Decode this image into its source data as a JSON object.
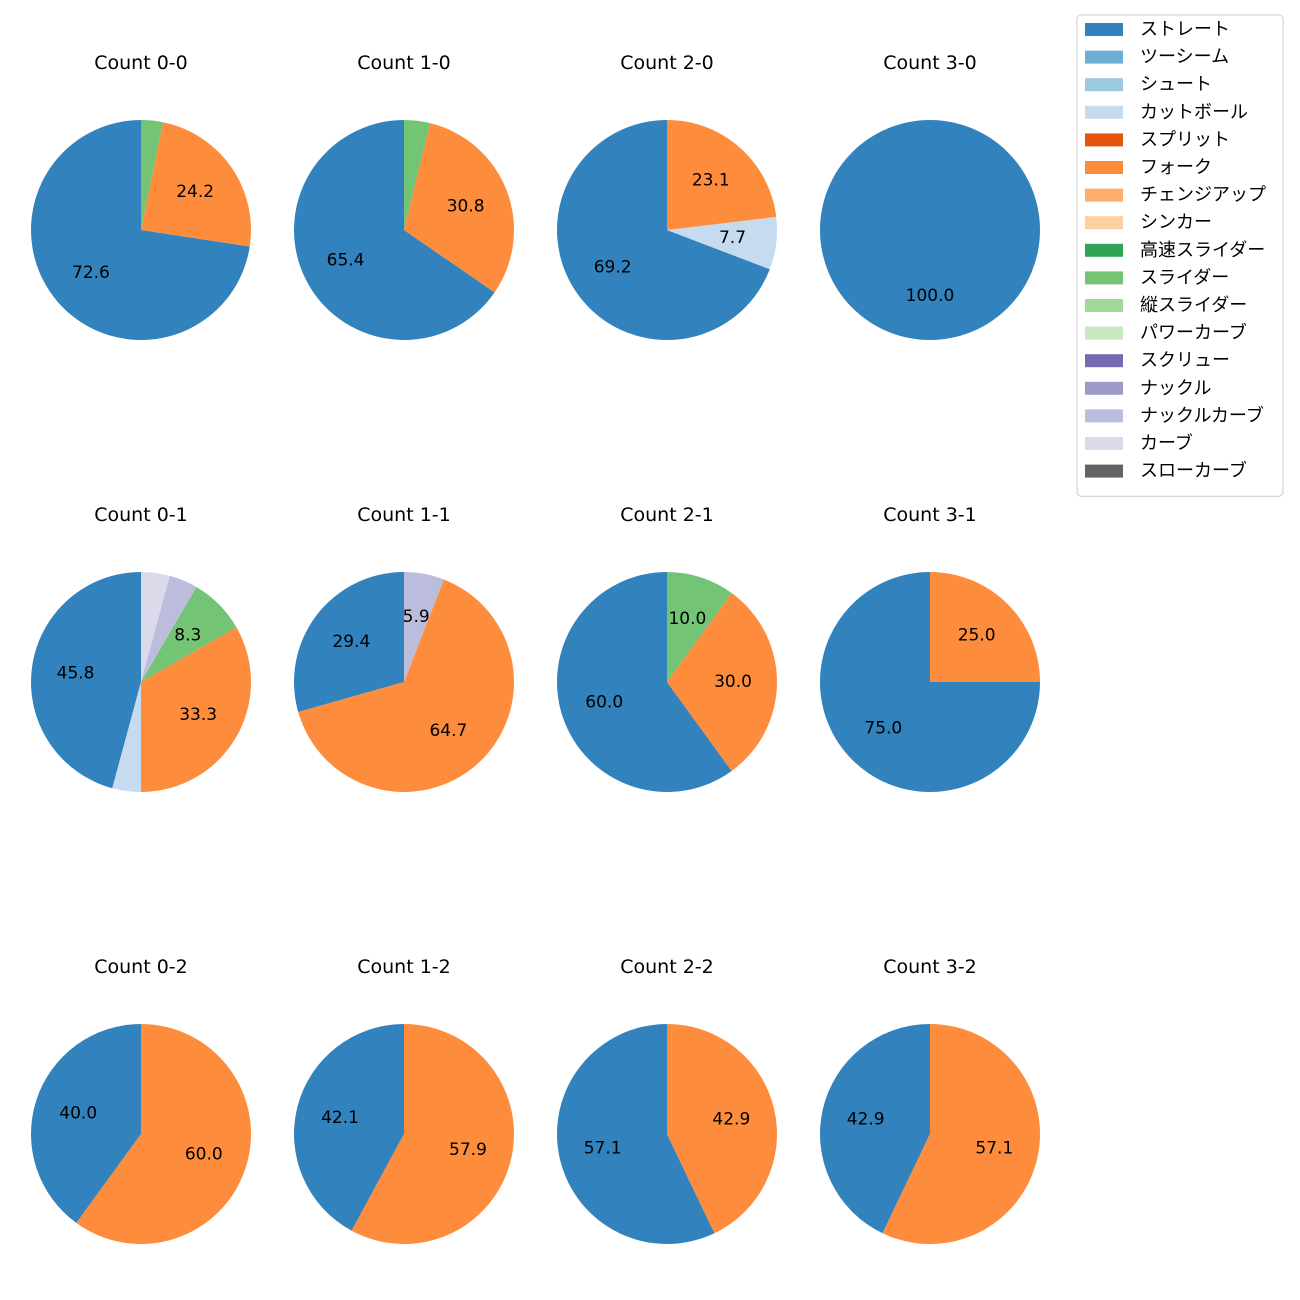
{
  "chart_data": {
    "type": "pie",
    "categories": [
      "ストレート",
      "ツーシーム",
      "シュート",
      "カットボール",
      "スプリット",
      "フォーク",
      "チェンジアップ",
      "シンカー",
      "高速スライダー",
      "スライダー",
      "縦スライダー",
      "パワーカーブ",
      "スクリュー",
      "ナックル",
      "ナックルカーブ",
      "カーブ",
      "スローカーブ"
    ],
    "colors": [
      "#3182bd",
      "#6baed6",
      "#9ecae1",
      "#c6dbef",
      "#e6550d",
      "#fd8d3c",
      "#fdae6b",
      "#fdd0a2",
      "#31a354",
      "#74c476",
      "#a1d99b",
      "#c7e9c0",
      "#756bb1",
      "#9e9ac8",
      "#bcbddc",
      "#dadaeb",
      "#636363"
    ],
    "legend_position": "top-right",
    "label_threshold": 5,
    "charts": [
      {
        "title": "Count 0-0",
        "values": {
          "ストレート": 72.6,
          "フォーク": 24.2,
          "スライダー": 3.2
        }
      },
      {
        "title": "Count 1-0",
        "values": {
          "ストレート": 65.4,
          "フォーク": 30.8,
          "スライダー": 3.8
        }
      },
      {
        "title": "Count 2-0",
        "values": {
          "ストレート": 69.2,
          "カットボール": 7.7,
          "フォーク": 23.1
        }
      },
      {
        "title": "Count 3-0",
        "values": {
          "ストレート": 100.0
        }
      },
      {
        "title": "Count 0-1",
        "values": {
          "ストレート": 45.8,
          "カットボール": 4.2,
          "フォーク": 33.3,
          "スライダー": 8.3,
          "ナックルカーブ": 4.2,
          "カーブ": 4.2
        }
      },
      {
        "title": "Count 1-1",
        "values": {
          "ストレート": 29.4,
          "フォーク": 64.7,
          "ナックルカーブ": 5.9
        }
      },
      {
        "title": "Count 2-1",
        "values": {
          "ストレート": 60.0,
          "フォーク": 30.0,
          "スライダー": 10.0
        }
      },
      {
        "title": "Count 3-1",
        "values": {
          "ストレート": 75.0,
          "フォーク": 25.0
        }
      },
      {
        "title": "Count 0-2",
        "values": {
          "ストレート": 40.0,
          "フォーク": 60.0
        }
      },
      {
        "title": "Count 1-2",
        "values": {
          "ストレート": 42.1,
          "フォーク": 57.9
        }
      },
      {
        "title": "Count 2-2",
        "values": {
          "ストレート": 57.1,
          "フォーク": 42.9
        }
      },
      {
        "title": "Count 3-2",
        "values": {
          "ストレート": 42.9,
          "フォーク": 57.1
        }
      }
    ]
  }
}
